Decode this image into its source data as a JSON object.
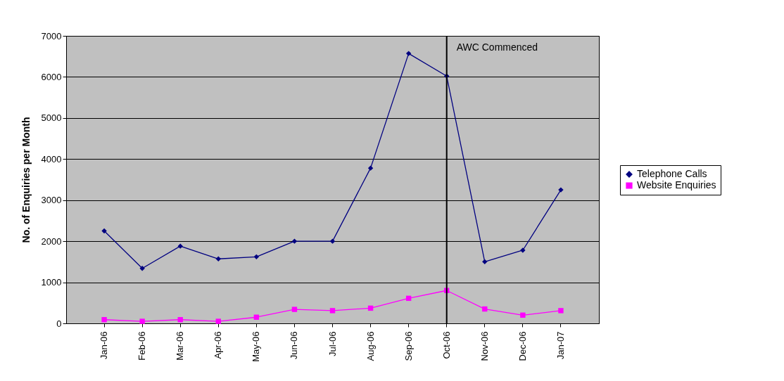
{
  "chart_data": {
    "type": "line",
    "ylabel": "No. of Enquiries per Month",
    "categories": [
      "Jan-06",
      "Feb-06",
      "Mar-06",
      "Apr-06",
      "May-06",
      "Jun-06",
      "Jul-06",
      "Aug-06",
      "Sep-06",
      "Oct-06",
      "Nov-06",
      "Dec-06",
      "Jan-07"
    ],
    "series": [
      {
        "name": "Telephone Calls",
        "color": "#000080",
        "marker": "diamond",
        "values": [
          2250,
          1340,
          1880,
          1570,
          1620,
          2000,
          2000,
          3780,
          6570,
          6020,
          1500,
          1780,
          3250
        ]
      },
      {
        "name": "Website Enquiries",
        "color": "#ff00ff",
        "marker": "square",
        "values": [
          90,
          50,
          90,
          50,
          150,
          340,
          310,
          370,
          610,
          800,
          350,
          200,
          310
        ]
      }
    ],
    "ylim": [
      0,
      7000
    ],
    "yticks": [
      0,
      1000,
      2000,
      3000,
      4000,
      5000,
      6000,
      7000
    ],
    "grid": "y",
    "legend": "right",
    "ref_lines": [
      {
        "axis": "x",
        "value": "Oct-06",
        "label": "AWC Commenced",
        "color": "#000000"
      }
    ]
  }
}
